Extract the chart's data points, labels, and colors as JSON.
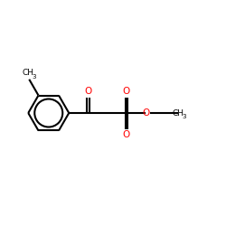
{
  "bg_color": "#ffffff",
  "bond_color": "#000000",
  "oxygen_color": "#ff0000",
  "lw": 1.5,
  "figsize": [
    2.5,
    2.5
  ],
  "dpi": 100,
  "xlim": [
    0,
    10
  ],
  "ylim": [
    2,
    8
  ]
}
